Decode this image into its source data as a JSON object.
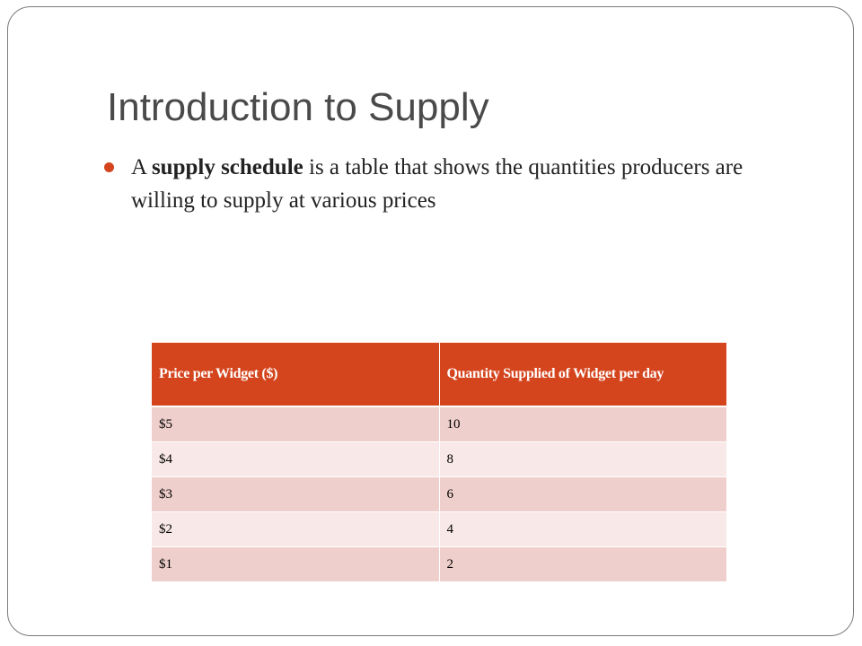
{
  "slide": {
    "title": "Introduction to Supply",
    "bullet": {
      "before": "A ",
      "bold": "supply schedule",
      "after": " is a table that shows the quantities producers are willing to supply at various prices"
    },
    "accent_color": "#d4451e",
    "table": {
      "headers": [
        "Price per Widget ($)",
        "Quantity  Supplied of Widget per day"
      ],
      "rows": [
        [
          "$5",
          "10"
        ],
        [
          "$4",
          "8"
        ],
        [
          "$3",
          "6"
        ],
        [
          "$2",
          "4"
        ],
        [
          "$1",
          "2"
        ]
      ]
    }
  }
}
